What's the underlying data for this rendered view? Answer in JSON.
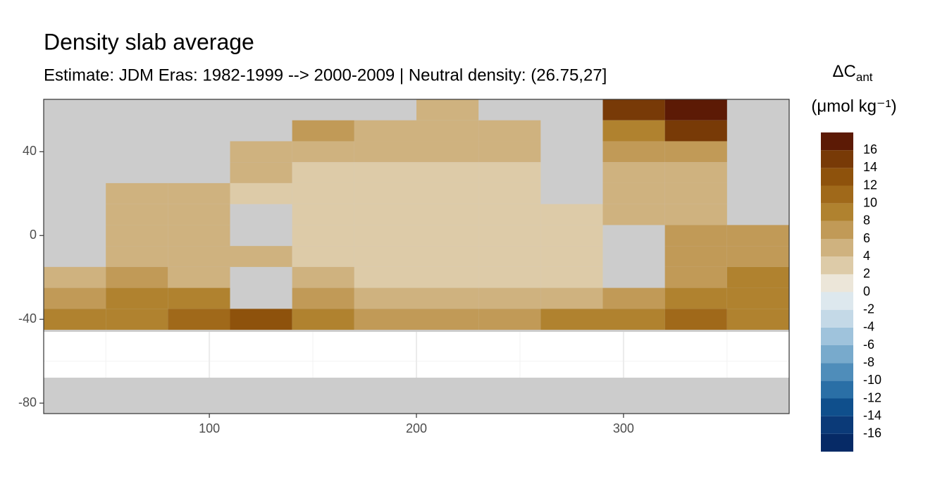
{
  "chart_data": {
    "type": "heatmap",
    "title": "Density slab average",
    "subtitle": "Estimate: JDM Eras: 1982-1999 --> 2000-2009 | Neutral density: (26.75,27]",
    "xlim": [
      20,
      380
    ],
    "ylim": [
      -85,
      65
    ],
    "xticks": [
      100,
      200,
      300
    ],
    "yticks": [
      40,
      0,
      -40,
      -80
    ],
    "xminorticks": [
      50,
      150,
      250,
      350
    ],
    "yminorticks": [
      60,
      20,
      -20,
      -60
    ],
    "grid": true,
    "lon": [
      35,
      65,
      95,
      125,
      155,
      185,
      215,
      245,
      275,
      305,
      335,
      365
    ],
    "lat": [
      60,
      50,
      40,
      30,
      20,
      10,
      0,
      -10,
      -20,
      -30,
      -40,
      -50,
      -60,
      -70,
      -80
    ],
    "values": [
      [
        null,
        null,
        null,
        null,
        null,
        null,
        5,
        null,
        null,
        14,
        17,
        null
      ],
      [
        null,
        null,
        null,
        null,
        6,
        5,
        5,
        5,
        null,
        9,
        14,
        null
      ],
      [
        null,
        null,
        null,
        5,
        5,
        5,
        4,
        4,
        null,
        7,
        6,
        null
      ],
      [
        null,
        null,
        null,
        4,
        3,
        3,
        3,
        3,
        null,
        5,
        5,
        null
      ],
      [
        null,
        5,
        5,
        3,
        3,
        3,
        2,
        3,
        null,
        5,
        5,
        null
      ],
      [
        null,
        5,
        5,
        null,
        3,
        3,
        2,
        2,
        3,
        5,
        5,
        null
      ],
      [
        null,
        5,
        5,
        null,
        3,
        2,
        2,
        2,
        2,
        null,
        6,
        6
      ],
      [
        null,
        5,
        5,
        4,
        3,
        2,
        2,
        2,
        3,
        null,
        7,
        6
      ],
      [
        5,
        6,
        5,
        null,
        4,
        3,
        3,
        3,
        2,
        null,
        7,
        8
      ],
      [
        7,
        8,
        9,
        null,
        6,
        5,
        5,
        5,
        4,
        7,
        9,
        9
      ],
      [
        9,
        9,
        10,
        12,
        8,
        7,
        7,
        6,
        8,
        8,
        11,
        9
      ],
      [
        null,
        null,
        null,
        null,
        null,
        null,
        null,
        null,
        null,
        null,
        null,
        null
      ],
      [
        null,
        null,
        null,
        null,
        null,
        null,
        null,
        null,
        null,
        null,
        null,
        null
      ],
      [
        null,
        null,
        null,
        null,
        null,
        null,
        null,
        null,
        null,
        null,
        null,
        null
      ],
      [
        null,
        null,
        null,
        null,
        null,
        null,
        null,
        null,
        null,
        null,
        null,
        null
      ]
    ],
    "legend": {
      "title": "ΔC",
      "title_sub": "ant",
      "unit": "(μmol kg⁻¹)",
      "limits": [
        -18,
        18
      ],
      "breaks": [
        16,
        14,
        12,
        10,
        8,
        6,
        4,
        2,
        0,
        -2,
        -4,
        -6,
        -8,
        -10,
        -12,
        -14,
        -16
      ],
      "colors": [
        "#062a66",
        "#0b3a78",
        "#0f4f8c",
        "#2a6fa6",
        "#4f8dba",
        "#78aacc",
        "#9fc3dc",
        "#c4d9e7",
        "#dde8ee",
        "#ece6d9",
        "#ddcba8",
        "#cfb27f",
        "#c19a57",
        "#b0822f",
        "#a0691a",
        "#8e520c",
        "#783a07",
        "#5c1a05"
      ]
    }
  }
}
